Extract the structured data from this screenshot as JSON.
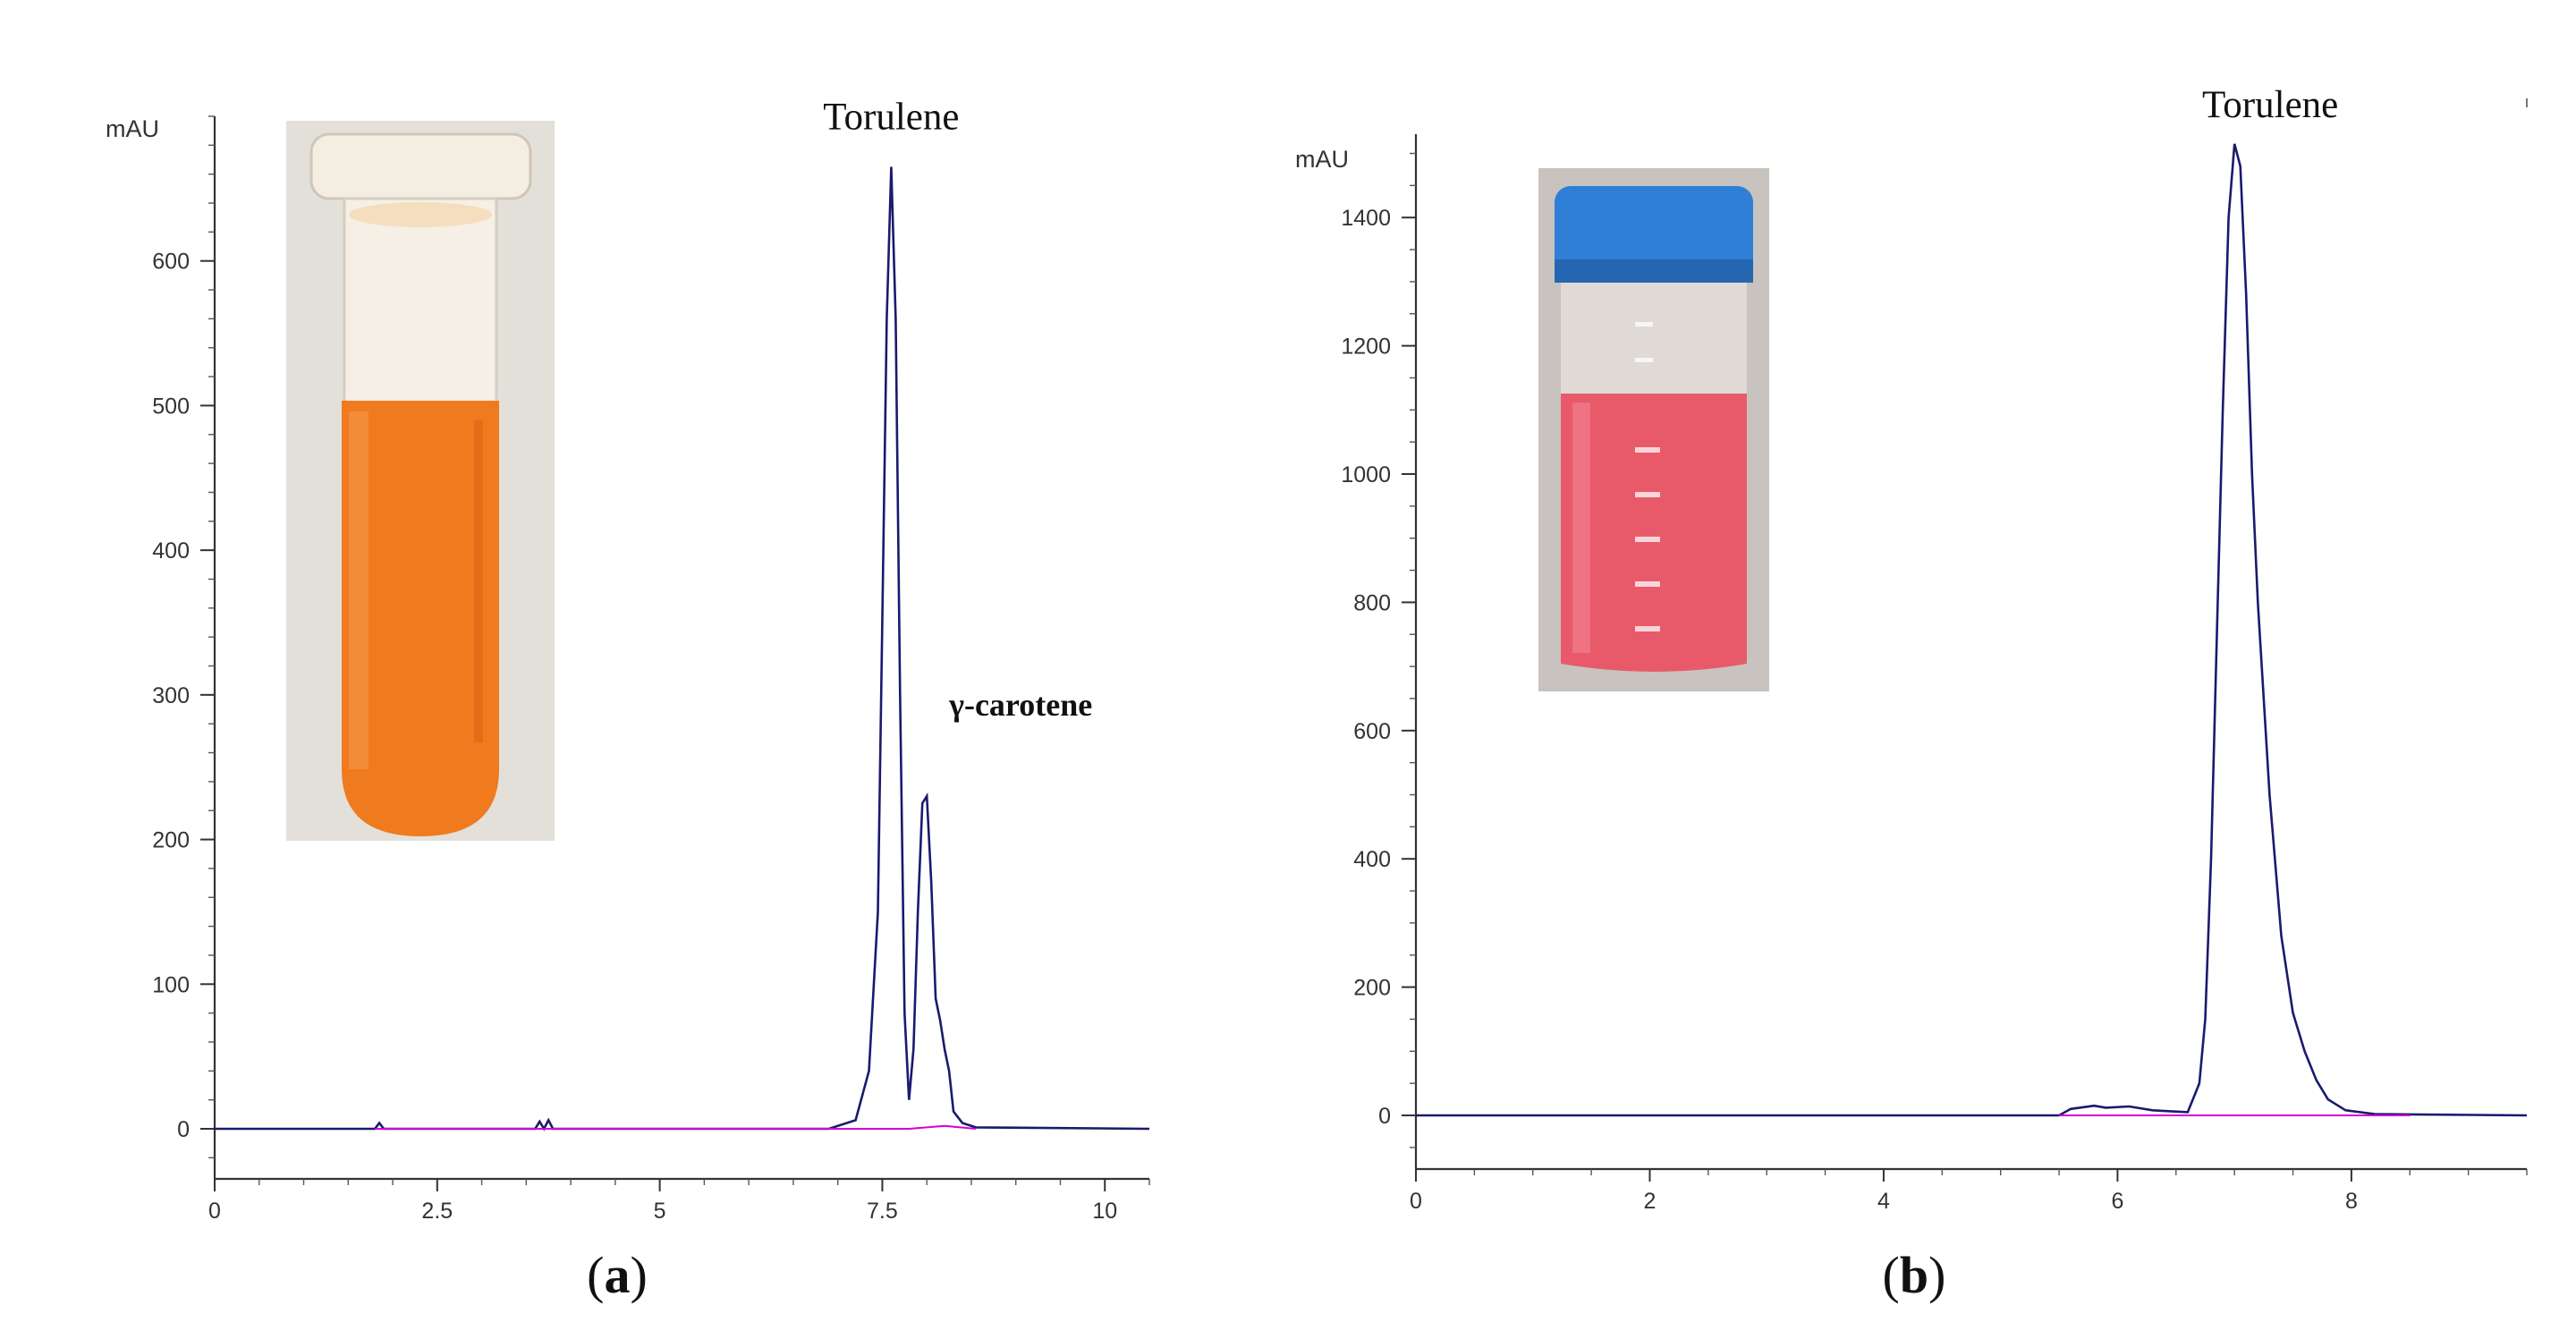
{
  "chart_data": [
    {
      "type": "line",
      "panel_label": "(a)",
      "y_unit": "mAU",
      "xlim": [
        0,
        10.5
      ],
      "ylim": [
        -40,
        700
      ],
      "x_ticks": [
        0,
        2.5,
        5,
        7.5,
        10
      ],
      "x_tick_labels": [
        "0",
        "2.5",
        "5",
        "7.5",
        "10"
      ],
      "y_ticks": [
        0,
        100,
        200,
        300,
        400,
        500,
        600
      ],
      "y_tick_labels": [
        "0",
        "100",
        "200",
        "300",
        "400",
        "500",
        "600"
      ],
      "series": [
        {
          "name": "chromatogram",
          "x": [
            0,
            1.8,
            1.85,
            1.9,
            2.2,
            3.6,
            3.65,
            3.7,
            3.75,
            3.8,
            4.4,
            6.9,
            7.2,
            7.35,
            7.45,
            7.5,
            7.55,
            7.6,
            7.65,
            7.7,
            7.75,
            7.8,
            7.85,
            7.9,
            7.95,
            8.0,
            8.05,
            8.1,
            8.15,
            8.2,
            8.25,
            8.3,
            8.4,
            8.55,
            10.5
          ],
          "y": [
            0,
            0,
            4,
            0,
            0,
            0,
            5,
            0,
            6,
            0,
            0,
            0,
            6,
            40,
            150,
            350,
            560,
            665,
            560,
            300,
            80,
            20,
            55,
            150,
            225,
            230,
            170,
            90,
            75,
            55,
            40,
            12,
            4,
            1,
            0
          ]
        },
        {
          "name": "integration baseline",
          "x": [
            1.8,
            2.2,
            3.6,
            4.4,
            7.2,
            7.8,
            8.2,
            8.55
          ],
          "y": [
            0,
            0,
            0,
            0,
            0,
            0,
            2,
            0
          ]
        }
      ],
      "annotations": [
        {
          "text": "Torulene",
          "x": 7.6,
          "y": 665
        },
        {
          "text": "γ-carotene",
          "x": 8.0,
          "y": 230
        }
      ]
    },
    {
      "type": "line",
      "panel_label": "(b)",
      "y_unit": "mAU",
      "xlim": [
        0,
        9.5
      ],
      "ylim": [
        -80,
        1530
      ],
      "x_ticks": [
        0,
        2,
        4,
        6,
        8
      ],
      "x_tick_labels": [
        "0",
        "2",
        "4",
        "6",
        "8"
      ],
      "y_ticks": [
        0,
        200,
        400,
        600,
        800,
        1000,
        1200,
        1400
      ],
      "y_tick_labels": [
        "0",
        "200",
        "400",
        "600",
        "800",
        "1000",
        "1200",
        "1400"
      ],
      "series": [
        {
          "name": "chromatogram",
          "x": [
            0,
            5.5,
            5.6,
            5.8,
            5.9,
            6.1,
            6.3,
            6.6,
            6.7,
            6.75,
            6.8,
            6.85,
            6.9,
            6.95,
            7.0,
            7.05,
            7.1,
            7.15,
            7.2,
            7.3,
            7.4,
            7.5,
            7.6,
            7.7,
            7.8,
            7.95,
            8.2,
            9.5
          ],
          "y": [
            0,
            0,
            10,
            15,
            12,
            14,
            8,
            5,
            50,
            150,
            400,
            750,
            1100,
            1400,
            1515,
            1480,
            1280,
            1000,
            800,
            500,
            280,
            160,
            100,
            55,
            25,
            8,
            2,
            0
          ]
        },
        {
          "name": "integration baseline",
          "x": [
            5.5,
            6.6,
            8.5
          ],
          "y": [
            0,
            0,
            0
          ]
        }
      ],
      "annotations": [
        {
          "text": "Torulene",
          "x": 7.0,
          "y": 1515
        }
      ]
    }
  ],
  "insets": [
    {
      "name": "orange-tube-photo",
      "liquid_color": "#f07a1e"
    },
    {
      "name": "pink-tube-photo",
      "liquid_color": "#e85a6a",
      "cap_color": "#2f7fd6"
    }
  ]
}
